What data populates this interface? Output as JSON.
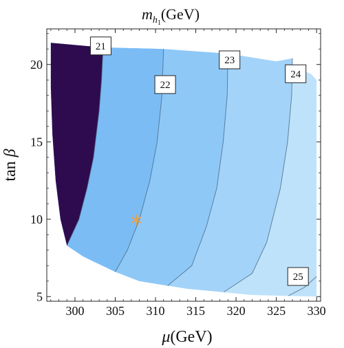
{
  "chart_data": {
    "type": "contour",
    "title_var": "m",
    "title_sub": "h",
    "title_subsub": "1",
    "title_unit": "(GeV)",
    "xlabel_var": "μ",
    "xlabel_unit": "(GeV)",
    "ylabel_var": "tan",
    "ylabel_sym": "β",
    "xlim": [
      296.5,
      330.5
    ],
    "ylim": [
      4.7,
      22.3
    ],
    "x_ticks": [
      300,
      305,
      310,
      315,
      320,
      325,
      330
    ],
    "y_ticks": [
      5,
      10,
      15,
      20
    ],
    "grid": false,
    "colors": {
      "region_21": "#2e0b4e",
      "region_22": "#7bbcf5",
      "region_23": "#8ec8f7",
      "region_24": "#a3d3f9",
      "region_25": "#bfe2fb",
      "contour_line": "#4a6a85",
      "marker": "#f0a040"
    },
    "contour_levels": [
      "21",
      "22",
      "23",
      "24",
      "25"
    ],
    "boundary": {
      "top": [
        [
          297.0,
          21.4
        ],
        [
          303.5,
          21.1
        ],
        [
          311.0,
          21.0
        ],
        [
          319.0,
          20.7
        ],
        [
          325.0,
          20.2
        ],
        [
          329.3,
          19.4
        ]
      ],
      "right_bottom": [
        330.0,
        5.0
      ],
      "bottom": [
        [
          330.0,
          5.0
        ],
        [
          322.0,
          5.1
        ],
        [
          314.0,
          5.5
        ],
        [
          308.0,
          6.0
        ],
        [
          305.0,
          6.6
        ],
        [
          301.0,
          7.6
        ],
        [
          299.0,
          8.3
        ]
      ],
      "left": [
        [
          299.0,
          8.3
        ],
        [
          298.2,
          10.0
        ],
        [
          297.6,
          12.5
        ],
        [
          297.2,
          15.5
        ],
        [
          297.0,
          18.5
        ],
        [
          297.0,
          21.4
        ]
      ]
    },
    "contours": [
      {
        "level": "21",
        "points": [
          [
            303.5,
            21.1
          ],
          [
            303.3,
            19.0
          ],
          [
            303.0,
            17.0
          ],
          [
            302.3,
            14.0
          ],
          [
            301.5,
            12.0
          ],
          [
            300.5,
            10.0
          ],
          [
            299.0,
            8.3
          ]
        ]
      },
      {
        "level": "22",
        "points": [
          [
            311.0,
            21.0
          ],
          [
            310.8,
            18.0
          ],
          [
            310.2,
            15.0
          ],
          [
            309.3,
            12.5
          ],
          [
            308.0,
            10.0
          ],
          [
            306.5,
            8.0
          ],
          [
            305.0,
            6.6
          ]
        ]
      },
      {
        "level": "23",
        "points": [
          [
            319.0,
            20.7
          ],
          [
            318.9,
            18.0
          ],
          [
            318.4,
            15.0
          ],
          [
            317.6,
            12.0
          ],
          [
            316.3,
            9.5
          ],
          [
            314.5,
            7.0
          ],
          [
            311.5,
            5.7
          ]
        ]
      },
      {
        "level": "24",
        "points": [
          [
            327.0,
            20.4
          ],
          [
            326.9,
            18.0
          ],
          [
            326.4,
            15.0
          ],
          [
            325.5,
            12.0
          ],
          [
            323.8,
            8.5
          ],
          [
            322.0,
            6.5
          ],
          [
            318.5,
            5.3
          ]
        ]
      },
      {
        "level": "25",
        "points": [
          [
            330.0,
            6.3
          ],
          [
            328.5,
            5.6
          ],
          [
            326.5,
            5.05
          ]
        ]
      }
    ],
    "contour_labels": [
      {
        "text": "21",
        "x": 303.2,
        "y": 21.2
      },
      {
        "text": "22",
        "x": 311.2,
        "y": 18.7
      },
      {
        "text": "23",
        "x": 319.2,
        "y": 20.3
      },
      {
        "text": "24",
        "x": 327.4,
        "y": 19.4
      },
      {
        "text": "25",
        "x": 327.7,
        "y": 6.3
      }
    ],
    "marker": {
      "symbol": "*",
      "x": 307.6,
      "y": 9.9
    }
  }
}
